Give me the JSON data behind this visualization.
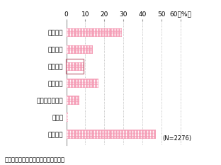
{
  "categories": [
    "周知方法",
    "周知内容",
    "周知時期",
    "情報精度",
    "内容変更の頻度",
    "その他",
    "特にない"
  ],
  "values": [
    29.0,
    14.0,
    9.0,
    17.0,
    7.0,
    1.0,
    47.0
  ],
  "bar_color": "#F5A0B8",
  "dot_color": "#FFFFFF",
  "highlight_label": "周知時期",
  "highlight_box_color": "#C07080",
  "xlim": [
    0,
    65
  ],
  "xticks": [
    0,
    10,
    20,
    30,
    40,
    50,
    60
  ],
  "xlabel_suffix": "60（%）",
  "note": "(N=2276)",
  "source": "資料）　国土交通省事業者アンケート",
  "background_color": "#FFFFFF",
  "bar_height": 0.52,
  "tick_fontsize": 6.5,
  "label_fontsize": 6.5,
  "note_fontsize": 6.0,
  "source_fontsize": 6.0
}
